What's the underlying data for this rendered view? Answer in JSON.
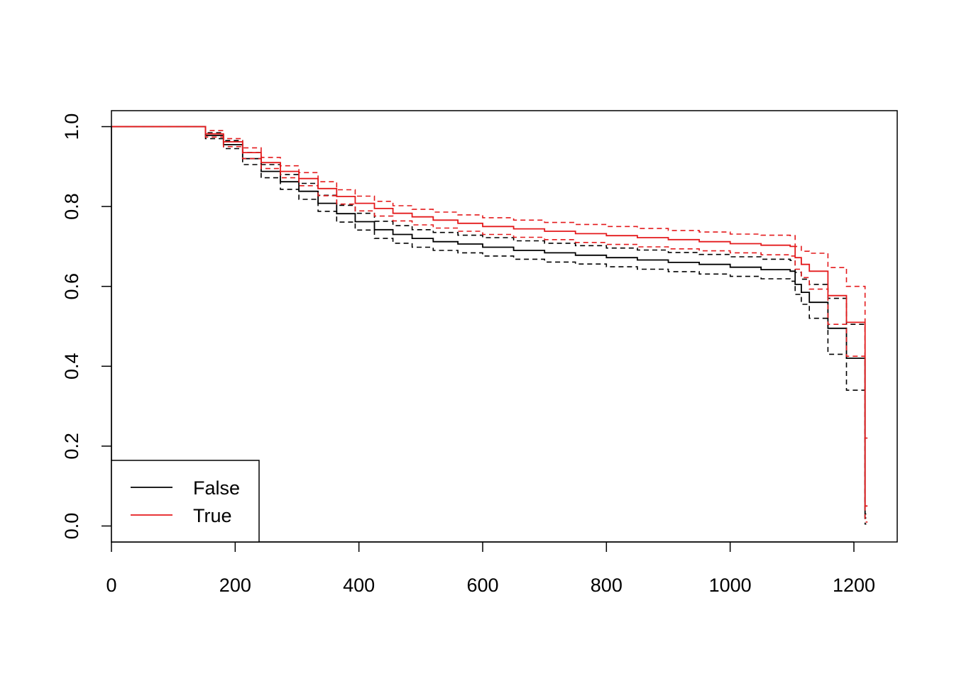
{
  "chart_data": {
    "type": "line",
    "title": "",
    "xlabel": "",
    "ylabel": "",
    "xlim": [
      0,
      1270
    ],
    "ylim": [
      -0.04,
      1.04
    ],
    "x_ticks": [
      0,
      200,
      400,
      600,
      800,
      1000,
      1200
    ],
    "x_tick_labels": [
      "0",
      "200",
      "400",
      "600",
      "800",
      "1000",
      "1200"
    ],
    "y_ticks": [
      0.0,
      0.2,
      0.4,
      0.6,
      0.8,
      1.0
    ],
    "y_tick_labels": [
      "0.0",
      "0.2",
      "0.4",
      "0.6",
      "0.8",
      "1.0"
    ],
    "grid": false,
    "legend_position": "bottom-left",
    "line_style": "step",
    "series": [
      {
        "name": "False",
        "color": "#000000",
        "x": [
          0,
          152,
          181,
          212,
          242,
          273,
          303,
          334,
          364,
          394,
          425,
          455,
          486,
          520,
          560,
          600,
          650,
          700,
          750,
          800,
          850,
          900,
          950,
          1000,
          1050,
          1097,
          1105,
          1115,
          1128,
          1158,
          1188,
          1218,
          1220
        ],
        "y": [
          1.0,
          0.978,
          0.955,
          0.92,
          0.888,
          0.862,
          0.838,
          0.808,
          0.782,
          0.762,
          0.742,
          0.73,
          0.72,
          0.712,
          0.706,
          0.698,
          0.69,
          0.684,
          0.678,
          0.672,
          0.666,
          0.66,
          0.655,
          0.648,
          0.642,
          0.638,
          0.605,
          0.585,
          0.56,
          0.495,
          0.42,
          0.02,
          0.02
        ],
        "ci_upper": [
          1.0,
          0.985,
          0.965,
          0.935,
          0.905,
          0.88,
          0.858,
          0.828,
          0.803,
          0.783,
          0.763,
          0.752,
          0.742,
          0.735,
          0.728,
          0.722,
          0.714,
          0.708,
          0.702,
          0.696,
          0.691,
          0.685,
          0.68,
          0.674,
          0.668,
          0.665,
          0.635,
          0.618,
          0.605,
          0.57,
          0.505,
          0.03,
          0.03
        ],
        "ci_lower": [
          1.0,
          0.97,
          0.945,
          0.905,
          0.872,
          0.843,
          0.818,
          0.788,
          0.761,
          0.741,
          0.72,
          0.708,
          0.698,
          0.69,
          0.684,
          0.676,
          0.668,
          0.661,
          0.656,
          0.649,
          0.643,
          0.637,
          0.631,
          0.625,
          0.619,
          0.613,
          0.58,
          0.555,
          0.52,
          0.43,
          0.34,
          0.005,
          0.005
        ]
      },
      {
        "name": "True",
        "color": "#e41a1c",
        "x": [
          0,
          152,
          181,
          212,
          242,
          273,
          303,
          334,
          364,
          394,
          425,
          455,
          486,
          520,
          560,
          600,
          650,
          700,
          750,
          800,
          850,
          900,
          950,
          1000,
          1050,
          1097,
          1105,
          1115,
          1128,
          1158,
          1188,
          1218,
          1222
        ],
        "y": [
          1.0,
          0.982,
          0.962,
          0.935,
          0.91,
          0.888,
          0.87,
          0.845,
          0.825,
          0.808,
          0.795,
          0.783,
          0.774,
          0.766,
          0.758,
          0.75,
          0.744,
          0.738,
          0.732,
          0.727,
          0.722,
          0.717,
          0.712,
          0.707,
          0.703,
          0.7,
          0.672,
          0.655,
          0.638,
          0.577,
          0.51,
          0.05,
          0.05
        ],
        "ci_upper": [
          1.0,
          0.99,
          0.97,
          0.947,
          0.923,
          0.902,
          0.885,
          0.862,
          0.842,
          0.826,
          0.813,
          0.802,
          0.793,
          0.786,
          0.779,
          0.772,
          0.766,
          0.76,
          0.755,
          0.75,
          0.745,
          0.74,
          0.736,
          0.731,
          0.728,
          0.727,
          0.7,
          0.688,
          0.683,
          0.647,
          0.6,
          0.22,
          0.22
        ],
        "ci_lower": [
          1.0,
          0.974,
          0.95,
          0.92,
          0.895,
          0.872,
          0.852,
          0.827,
          0.806,
          0.789,
          0.776,
          0.764,
          0.754,
          0.746,
          0.738,
          0.73,
          0.723,
          0.717,
          0.71,
          0.705,
          0.699,
          0.694,
          0.689,
          0.684,
          0.679,
          0.676,
          0.643,
          0.622,
          0.593,
          0.505,
          0.425,
          0.01,
          0.01
        ]
      }
    ]
  }
}
